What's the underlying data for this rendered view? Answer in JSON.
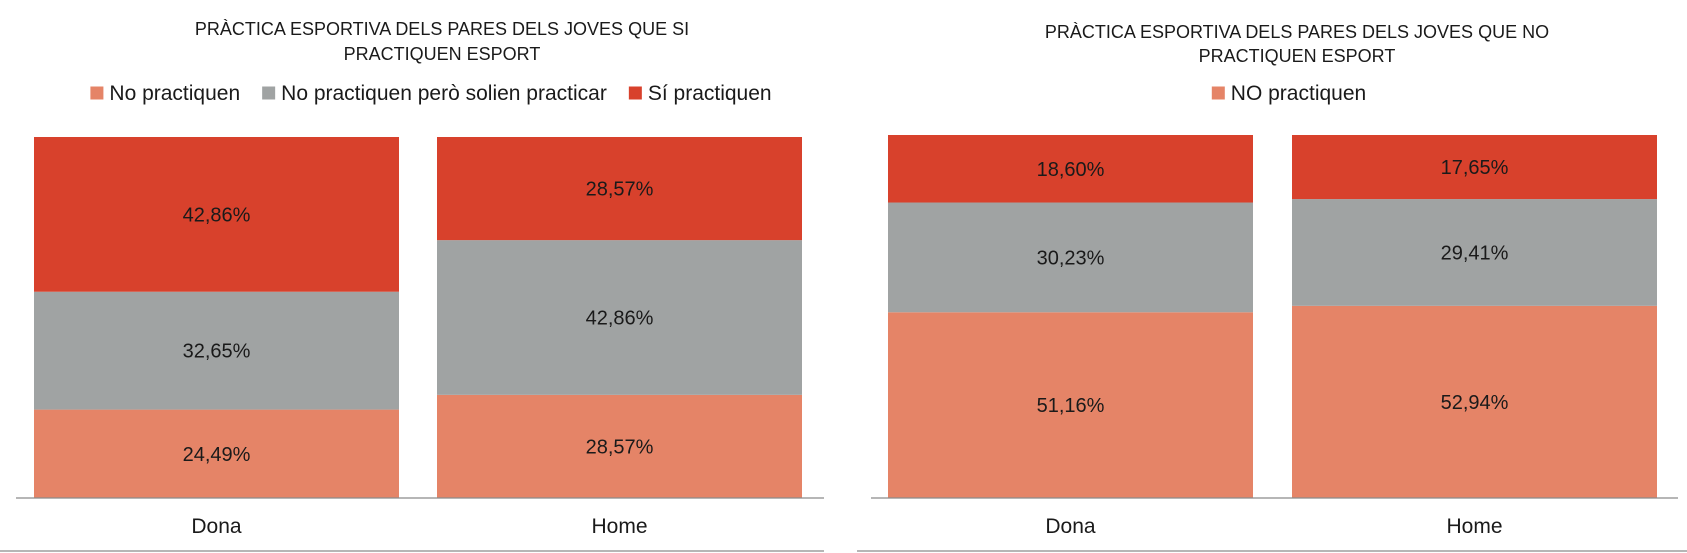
{
  "chart_data": [
    {
      "type": "bar",
      "stacked": true,
      "normalized": true,
      "title": "PRÀCTICA ESPORTIVA DELS PARES DELS JOVES QUE SI PRACTIQUEN ESPORT",
      "title_lines": [
        "PRÀCTICA ESPORTIVA DELS PARES DELS JOVES QUE SI",
        "PRACTIQUEN ESPORT"
      ],
      "categories": [
        "Dona",
        "Home"
      ],
      "series": [
        {
          "name": "No practiquen",
          "color": "#e58467",
          "values": [
            24.49,
            28.57
          ],
          "labels": [
            "24,49%",
            "28,57%"
          ]
        },
        {
          "name": "No practiquen però solien practicar",
          "color": "#a0a3a3",
          "values": [
            32.65,
            42.86
          ],
          "labels": [
            "32,65%",
            "42,86%"
          ]
        },
        {
          "name": "Sí practiquen",
          "color": "#d8412c",
          "values": [
            42.86,
            28.57
          ],
          "labels": [
            "42,86%",
            "28,57%"
          ]
        }
      ],
      "legend": {
        "position": "top",
        "entries": [
          {
            "label": "No practiquen",
            "color": "#e58467"
          },
          {
            "label": "No practiquen però solien practicar",
            "color": "#a0a3a3"
          },
          {
            "label": "Sí practiquen",
            "color": "#d8412c"
          }
        ]
      },
      "ylim": [
        0,
        100
      ],
      "grid": false
    },
    {
      "type": "bar",
      "stacked": true,
      "normalized": true,
      "title": "PRÀCTICA ESPORTIVA DELS PARES DELS JOVES QUE NO PRACTIQUEN ESPORT",
      "title_lines": [
        "PRÀCTICA ESPORTIVA DELS PARES DELS JOVES QUE NO",
        "PRACTIQUEN ESPORT"
      ],
      "categories": [
        "Dona",
        "Home"
      ],
      "series": [
        {
          "name": "NO practiquen",
          "color": "#e58467",
          "values": [
            51.16,
            52.94
          ],
          "labels": [
            "51,16%",
            "52,94%"
          ]
        },
        {
          "color": "#a0a3a3",
          "values": [
            30.23,
            29.41
          ],
          "labels": [
            "30,23%",
            "29,41%"
          ]
        },
        {
          "color": "#d8412c",
          "values": [
            18.6,
            17.65
          ],
          "labels": [
            "18,60%",
            "17,65%"
          ]
        }
      ],
      "legend": {
        "position": "top",
        "entries": [
          {
            "label": "NO practiquen",
            "color": "#e58467"
          }
        ]
      },
      "ylim": [
        0,
        100
      ],
      "grid": false
    }
  ]
}
